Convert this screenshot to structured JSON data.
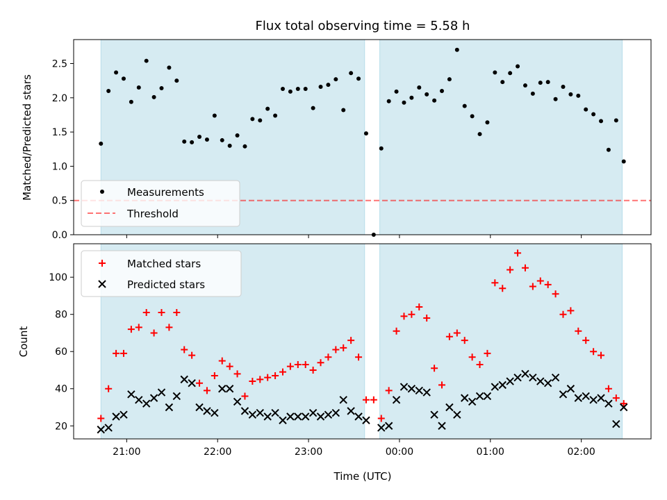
{
  "chart_data": {
    "type": "scatter",
    "title": "Flux total observing time = 5.58 h",
    "xlabel": "Time (UTC)",
    "x_ticks": [
      "21:00",
      "22:00",
      "23:00",
      "00:00",
      "01:00",
      "02:00"
    ],
    "observing_windows": [
      [
        "20:43",
        "23:37"
      ],
      [
        "23:47",
        "02:27"
      ]
    ],
    "colors": {
      "window": "#add8e6",
      "measurement": "#000000",
      "threshold": "#ff0000",
      "matched": "#ff0000",
      "predicted": "#000000"
    },
    "top": {
      "ylabel": "Matched/Predicted stars",
      "ylim": [
        0,
        2.85
      ],
      "y_ticks": [
        0.0,
        0.5,
        1.0,
        1.5,
        2.0,
        2.5
      ],
      "threshold": 0.5,
      "legend": {
        "measurements": "Measurements",
        "threshold": "Threshold"
      },
      "legend_position": "lower-left",
      "series": {
        "name": "Measurements",
        "points": [
          [
            "20:43",
            1.33
          ],
          [
            "20:48",
            2.1
          ],
          [
            "20:53",
            2.37
          ],
          [
            "20:58",
            2.28
          ],
          [
            "21:03",
            1.94
          ],
          [
            "21:08",
            2.15
          ],
          [
            "21:13",
            2.54
          ],
          [
            "21:18",
            2.01
          ],
          [
            "21:23",
            2.14
          ],
          [
            "21:28",
            2.44
          ],
          [
            "21:33",
            2.25
          ],
          [
            "21:38",
            1.36
          ],
          [
            "21:43",
            1.35
          ],
          [
            "21:48",
            1.43
          ],
          [
            "21:53",
            1.39
          ],
          [
            "21:58",
            1.74
          ],
          [
            "22:03",
            1.38
          ],
          [
            "22:08",
            1.3
          ],
          [
            "22:13",
            1.45
          ],
          [
            "22:18",
            1.29
          ],
          [
            "22:23",
            1.69
          ],
          [
            "22:28",
            1.67
          ],
          [
            "22:33",
            1.84
          ],
          [
            "22:38",
            1.74
          ],
          [
            "22:43",
            2.13
          ],
          [
            "22:48",
            2.09
          ],
          [
            "22:53",
            2.13
          ],
          [
            "22:58",
            2.13
          ],
          [
            "23:03",
            1.85
          ],
          [
            "23:08",
            2.16
          ],
          [
            "23:13",
            2.19
          ],
          [
            "23:18",
            2.27
          ],
          [
            "23:23",
            1.82
          ],
          [
            "23:28",
            2.36
          ],
          [
            "23:33",
            2.28
          ],
          [
            "23:38",
            1.48
          ],
          [
            "23:43",
            0.0
          ],
          [
            "23:48",
            1.26
          ],
          [
            "23:53",
            1.95
          ],
          [
            "23:58",
            2.09
          ],
          [
            "00:03",
            1.93
          ],
          [
            "00:08",
            2.0
          ],
          [
            "00:13",
            2.15
          ],
          [
            "00:18",
            2.05
          ],
          [
            "00:23",
            1.96
          ],
          [
            "00:28",
            2.1
          ],
          [
            "00:33",
            2.27
          ],
          [
            "00:38",
            2.7
          ],
          [
            "00:43",
            1.88
          ],
          [
            "00:48",
            1.73
          ],
          [
            "00:53",
            1.47
          ],
          [
            "00:58",
            1.64
          ],
          [
            "01:03",
            2.37
          ],
          [
            "01:08",
            2.23
          ],
          [
            "01:13",
            2.36
          ],
          [
            "01:18",
            2.46
          ],
          [
            "01:23",
            2.18
          ],
          [
            "01:28",
            2.06
          ],
          [
            "01:33",
            2.22
          ],
          [
            "01:38",
            2.23
          ],
          [
            "01:43",
            1.98
          ],
          [
            "01:48",
            2.16
          ],
          [
            "01:53",
            2.05
          ],
          [
            "01:58",
            2.03
          ],
          [
            "02:03",
            1.83
          ],
          [
            "02:08",
            1.76
          ],
          [
            "02:13",
            1.66
          ],
          [
            "02:18",
            1.24
          ],
          [
            "02:23",
            1.67
          ],
          [
            "02:28",
            1.07
          ]
        ]
      }
    },
    "bottom": {
      "ylabel": "Count",
      "ylim": [
        13,
        118
      ],
      "y_ticks": [
        20,
        40,
        60,
        80,
        100
      ],
      "legend_position": "upper-left",
      "series": [
        {
          "name": "Matched stars",
          "marker": "plus",
          "points": [
            [
              "20:43",
              24
            ],
            [
              "20:48",
              40
            ],
            [
              "20:53",
              59
            ],
            [
              "20:58",
              59
            ],
            [
              "21:03",
              72
            ],
            [
              "21:08",
              73
            ],
            [
              "21:13",
              81
            ],
            [
              "21:18",
              70
            ],
            [
              "21:23",
              81
            ],
            [
              "21:28",
              73
            ],
            [
              "21:33",
              81
            ],
            [
              "21:38",
              61
            ],
            [
              "21:43",
              58
            ],
            [
              "21:48",
              43
            ],
            [
              "21:53",
              39
            ],
            [
              "21:58",
              47
            ],
            [
              "22:03",
              55
            ],
            [
              "22:08",
              52
            ],
            [
              "22:13",
              48
            ],
            [
              "22:18",
              36
            ],
            [
              "22:23",
              44
            ],
            [
              "22:28",
              45
            ],
            [
              "22:33",
              46
            ],
            [
              "22:38",
              47
            ],
            [
              "22:43",
              49
            ],
            [
              "22:48",
              52
            ],
            [
              "22:53",
              53
            ],
            [
              "22:58",
              53
            ],
            [
              "23:03",
              50
            ],
            [
              "23:08",
              54
            ],
            [
              "23:13",
              57
            ],
            [
              "23:18",
              61
            ],
            [
              "23:23",
              62
            ],
            [
              "23:28",
              66
            ],
            [
              "23:33",
              57
            ],
            [
              "23:38",
              34
            ],
            [
              "23:43",
              34
            ],
            [
              "23:48",
              24
            ],
            [
              "23:53",
              39
            ],
            [
              "23:58",
              71
            ],
            [
              "00:03",
              79
            ],
            [
              "00:08",
              80
            ],
            [
              "00:13",
              84
            ],
            [
              "00:18",
              78
            ],
            [
              "00:23",
              51
            ],
            [
              "00:28",
              42
            ],
            [
              "00:33",
              68
            ],
            [
              "00:38",
              70
            ],
            [
              "00:43",
              66
            ],
            [
              "00:48",
              57
            ],
            [
              "00:53",
              53
            ],
            [
              "00:58",
              59
            ],
            [
              "01:03",
              97
            ],
            [
              "01:08",
              94
            ],
            [
              "01:13",
              104
            ],
            [
              "01:18",
              113
            ],
            [
              "01:23",
              105
            ],
            [
              "01:28",
              95
            ],
            [
              "01:33",
              98
            ],
            [
              "01:38",
              96
            ],
            [
              "01:43",
              91
            ],
            [
              "01:48",
              80
            ],
            [
              "01:53",
              82
            ],
            [
              "01:58",
              71
            ],
            [
              "02:03",
              66
            ],
            [
              "02:08",
              60
            ],
            [
              "02:13",
              58
            ],
            [
              "02:18",
              40
            ],
            [
              "02:23",
              35
            ],
            [
              "02:28",
              32
            ]
          ]
        },
        {
          "name": "Predicted stars",
          "marker": "cross",
          "points": [
            [
              "20:43",
              18
            ],
            [
              "20:48",
              19
            ],
            [
              "20:53",
              25
            ],
            [
              "20:58",
              26
            ],
            [
              "21:03",
              37
            ],
            [
              "21:08",
              34
            ],
            [
              "21:13",
              32
            ],
            [
              "21:18",
              35
            ],
            [
              "21:23",
              38
            ],
            [
              "21:28",
              30
            ],
            [
              "21:33",
              36
            ],
            [
              "21:38",
              45
            ],
            [
              "21:43",
              43
            ],
            [
              "21:48",
              30
            ],
            [
              "21:53",
              28
            ],
            [
              "21:58",
              27
            ],
            [
              "22:03",
              40
            ],
            [
              "22:08",
              40
            ],
            [
              "22:13",
              33
            ],
            [
              "22:18",
              28
            ],
            [
              "22:23",
              26
            ],
            [
              "22:28",
              27
            ],
            [
              "22:33",
              25
            ],
            [
              "22:38",
              27
            ],
            [
              "22:43",
              23
            ],
            [
              "22:48",
              25
            ],
            [
              "22:53",
              25
            ],
            [
              "22:58",
              25
            ],
            [
              "23:03",
              27
            ],
            [
              "23:08",
              25
            ],
            [
              "23:13",
              26
            ],
            [
              "23:18",
              27
            ],
            [
              "23:23",
              34
            ],
            [
              "23:28",
              28
            ],
            [
              "23:33",
              25
            ],
            [
              "23:38",
              23
            ],
            [
              "23:48",
              19
            ],
            [
              "23:53",
              20
            ],
            [
              "23:58",
              34
            ],
            [
              "00:03",
              41
            ],
            [
              "00:08",
              40
            ],
            [
              "00:13",
              39
            ],
            [
              "00:18",
              38
            ],
            [
              "00:23",
              26
            ],
            [
              "00:28",
              20
            ],
            [
              "00:33",
              30
            ],
            [
              "00:38",
              26
            ],
            [
              "00:43",
              35
            ],
            [
              "00:48",
              33
            ],
            [
              "00:53",
              36
            ],
            [
              "00:58",
              36
            ],
            [
              "01:03",
              41
            ],
            [
              "01:08",
              42
            ],
            [
              "01:13",
              44
            ],
            [
              "01:18",
              46
            ],
            [
              "01:23",
              48
            ],
            [
              "01:28",
              46
            ],
            [
              "01:33",
              44
            ],
            [
              "01:38",
              43
            ],
            [
              "01:43",
              46
            ],
            [
              "01:48",
              37
            ],
            [
              "01:53",
              40
            ],
            [
              "01:58",
              35
            ],
            [
              "02:03",
              36
            ],
            [
              "02:08",
              34
            ],
            [
              "02:13",
              35
            ],
            [
              "02:18",
              32
            ],
            [
              "02:23",
              21
            ],
            [
              "02:28",
              30
            ]
          ]
        }
      ]
    }
  }
}
